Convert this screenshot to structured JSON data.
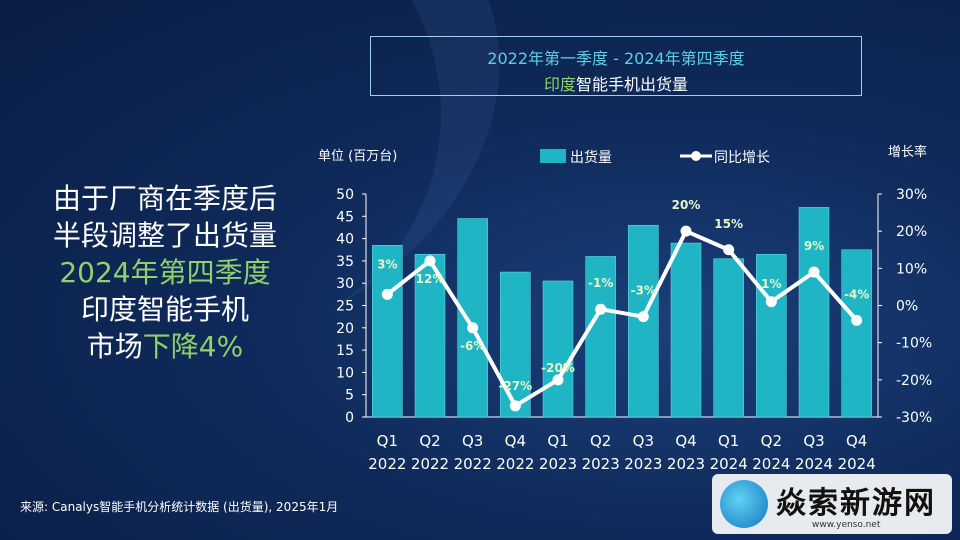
{
  "title": {
    "line1": "2022年第一季度 - 2024年第四季度",
    "line2_highlight": "印度",
    "line2_rest": "智能手机出货量"
  },
  "headline": {
    "line1": "由于厂商在季度后",
    "line2": "半段调整了出货量",
    "line3": "2024年第四季度",
    "line4": "印度智能手机",
    "line5a": "市场",
    "line5b": "下降4%"
  },
  "source": "来源: Canalys智能手机分析统计数据 (出货量), 2025年1月",
  "watermark": {
    "text": "焱索新游网",
    "url": "www.yenso.net"
  },
  "chart_data": {
    "type": "bar+line",
    "title": "印度智能手机出货量",
    "ylabel": "单位 (百万台)",
    "y2label": "增长率",
    "categories": [
      {
        "q": "Q1",
        "y": "2022"
      },
      {
        "q": "Q2",
        "y": "2022"
      },
      {
        "q": "Q3",
        "y": "2022"
      },
      {
        "q": "Q4",
        "y": "2022"
      },
      {
        "q": "Q1",
        "y": "2023"
      },
      {
        "q": "Q2",
        "y": "2023"
      },
      {
        "q": "Q3",
        "y": "2023"
      },
      {
        "q": "Q4",
        "y": "2023"
      },
      {
        "q": "Q1",
        "y": "2024"
      },
      {
        "q": "Q2",
        "y": "2024"
      },
      {
        "q": "Q3",
        "y": "2024"
      },
      {
        "q": "Q4",
        "y": "2024"
      }
    ],
    "series": [
      {
        "name": "出货量",
        "kind": "bar",
        "color": "#1fb5c4",
        "values": [
          38.5,
          36.5,
          44.5,
          32.5,
          30.5,
          36.0,
          43.0,
          39.0,
          35.5,
          36.5,
          47.0,
          37.5
        ]
      },
      {
        "name": "同比增长",
        "kind": "line",
        "color": "#ffffff",
        "values": [
          3,
          12,
          -6,
          -27,
          -20,
          -1,
          -3,
          20,
          15,
          1,
          9,
          -4
        ],
        "labels": [
          "3%",
          "12%",
          "-6%",
          "-27%",
          "-20%",
          "-1%",
          "-3%",
          "20%",
          "15%",
          "1%",
          "9%",
          "-4%"
        ]
      }
    ],
    "ylim": [
      0,
      50
    ],
    "yticks": [
      "0",
      "5",
      "10",
      "15",
      "20",
      "25",
      "30",
      "35",
      "40",
      "45",
      "50"
    ],
    "y2lim": [
      -30,
      30
    ],
    "y2ticks": [
      "-30%",
      "-20%",
      "-10%",
      "0%",
      "10%",
      "20%",
      "30%"
    ],
    "legend_position": "top"
  }
}
